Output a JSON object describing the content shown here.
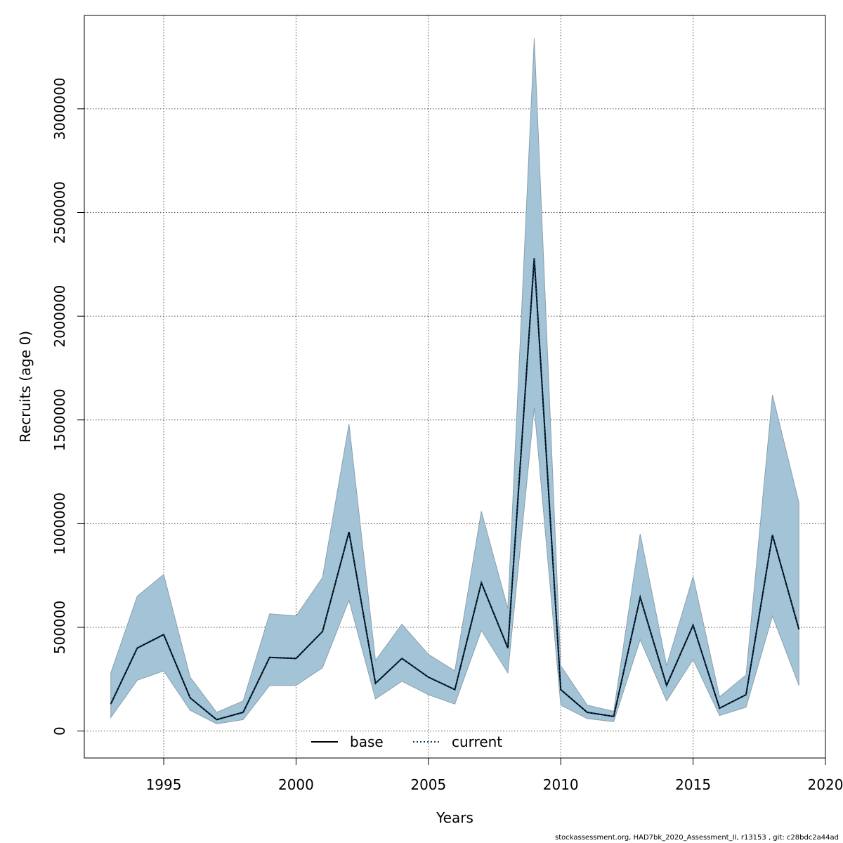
{
  "chart_data": {
    "type": "line",
    "xlabel": "Years",
    "ylabel": "Recruits (age 0)",
    "xlim": [
      1992,
      2020
    ],
    "ylim": [
      -130000,
      3450000
    ],
    "x_ticks": [
      1995,
      2000,
      2005,
      2010,
      2015,
      2020
    ],
    "y_ticks": [
      0,
      500000,
      1000000,
      1500000,
      2000000,
      2500000,
      3000000
    ],
    "grid": true,
    "legend": {
      "position": "bottom-center",
      "entries": [
        "base",
        "current"
      ]
    },
    "x": [
      1993,
      1994,
      1995,
      1996,
      1997,
      1998,
      1999,
      2000,
      2001,
      2002,
      2003,
      2004,
      2005,
      2006,
      2007,
      2008,
      2009,
      2010,
      2011,
      2012,
      2013,
      2014,
      2015,
      2016,
      2017,
      2018,
      2019
    ],
    "series": [
      {
        "name": "base",
        "values": [
          130000,
          400000,
          465000,
          160000,
          55000,
          90000,
          355000,
          350000,
          480000,
          960000,
          230000,
          350000,
          260000,
          200000,
          715000,
          400000,
          2280000,
          200000,
          90000,
          70000,
          645000,
          220000,
          510000,
          110000,
          175000,
          945000,
          490000
        ]
      },
      {
        "name": "current",
        "values": [
          130000,
          400000,
          465000,
          160000,
          55000,
          90000,
          355000,
          350000,
          480000,
          960000,
          230000,
          350000,
          260000,
          200000,
          715000,
          400000,
          2280000,
          200000,
          90000,
          70000,
          645000,
          220000,
          510000,
          110000,
          175000,
          945000,
          490000
        ]
      }
    ],
    "band": {
      "upper": [
        280000,
        650000,
        755000,
        260000,
        90000,
        145000,
        565000,
        555000,
        740000,
        1480000,
        340000,
        515000,
        370000,
        290000,
        1060000,
        590000,
        3340000,
        315000,
        125000,
        95000,
        950000,
        315000,
        745000,
        165000,
        270000,
        1620000,
        1100000
      ],
      "lower": [
        65000,
        245000,
        290000,
        100000,
        35000,
        55000,
        220000,
        220000,
        305000,
        630000,
        155000,
        240000,
        175000,
        130000,
        485000,
        280000,
        1560000,
        125000,
        60000,
        45000,
        440000,
        145000,
        345000,
        75000,
        115000,
        555000,
        220000
      ]
    },
    "colors": {
      "band": "#a3c4d6",
      "band_edge": "#8aa0ad",
      "base": "#000000",
      "current": "#0b3d6b"
    }
  },
  "footer": "stockassessment.org, HAD7bk_2020_Assessment_II, r13153 , git: c28bdc2a44ad"
}
